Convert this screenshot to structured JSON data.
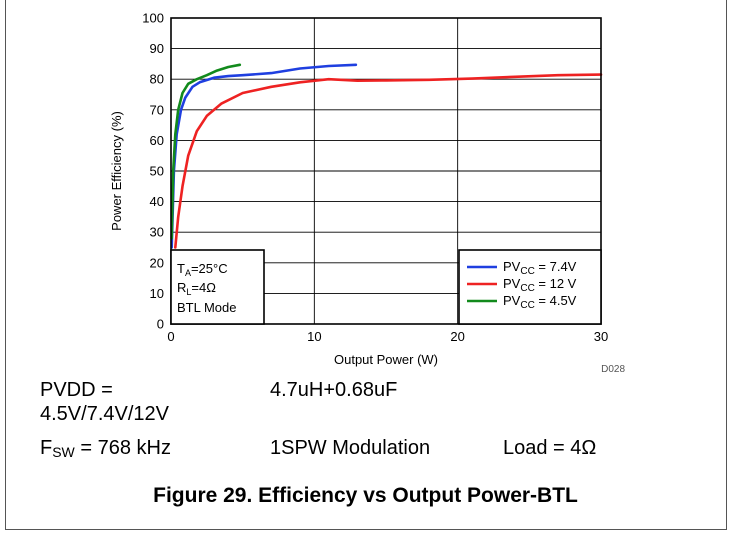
{
  "chart_data": {
    "type": "line",
    "title": "",
    "xlabel": "Output Power (W)",
    "ylabel": "Power Efficiency (%)",
    "xlim": [
      0,
      30
    ],
    "ylim": [
      0,
      100
    ],
    "xticks": [
      "0",
      "10",
      "20",
      "30"
    ],
    "yticks": [
      "0",
      "10",
      "20",
      "30",
      "40",
      "50",
      "60",
      "70",
      "80",
      "90",
      "100"
    ],
    "grid": true,
    "legend_position": "bottom-right",
    "figure_id": "D028",
    "series": [
      {
        "name": "PVCC = 7.4V",
        "color": "#1f3fe0",
        "x": [
          0.05,
          0.2,
          0.4,
          0.7,
          1.0,
          1.5,
          2.0,
          3.0,
          4.0,
          5.0,
          7.0,
          9.0,
          11.0,
          12.9
        ],
        "y": [
          25,
          50,
          62,
          70,
          74,
          77.5,
          79,
          80.5,
          81,
          81.3,
          82,
          83.5,
          84.3,
          84.7
        ]
      },
      {
        "name": "PVCC = 12 V",
        "color": "#ee2222",
        "x": [
          0.3,
          0.5,
          0.8,
          1.2,
          1.8,
          2.5,
          3.5,
          5.0,
          7.0,
          9.0,
          11.0,
          13.0,
          15.0,
          18.0,
          21.0,
          24.0,
          27.0,
          30.0
        ],
        "y": [
          25,
          35,
          45,
          55,
          63,
          68,
          72,
          75.5,
          77.5,
          79,
          80,
          79.5,
          79.6,
          79.8,
          80.2,
          80.8,
          81.3,
          81.5
        ]
      },
      {
        "name": "PVCC = 4.5V",
        "color": "#128a1c",
        "x": [
          0.05,
          0.15,
          0.3,
          0.5,
          0.8,
          1.2,
          1.8,
          2.5,
          3.2,
          4.0,
          4.8
        ],
        "y": [
          28,
          50,
          62,
          70,
          75.5,
          78.5,
          80,
          81.3,
          82.8,
          84,
          84.7
        ]
      }
    ],
    "annotations": {
      "ta": "=25°C",
      "rl": "=4Ω",
      "mode": "BTL Mode"
    }
  },
  "conditions": {
    "pvdd": "PVDD = 4.5V/7.4V/12V",
    "filter": "4.7uH+0.68uF",
    "fsw_sub": "SW",
    "fsw_value": " = 768 kHz",
    "modulation": "1SPW Modulation",
    "load": "Load = 4Ω"
  },
  "caption": "Figure 29.  Efficiency vs Output Power-BTL"
}
